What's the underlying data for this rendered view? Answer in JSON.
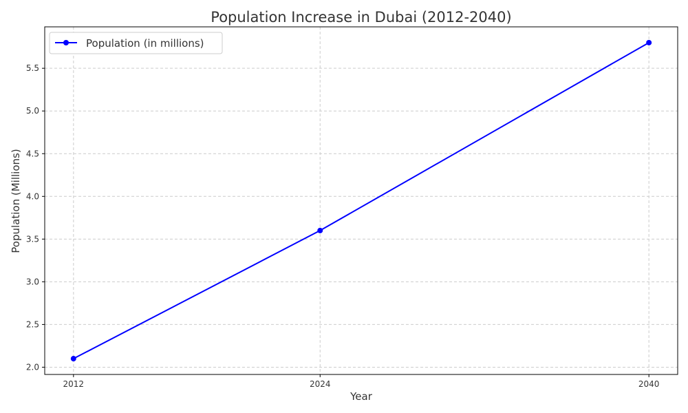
{
  "chart_data": {
    "type": "line",
    "title": "Population Increase in Dubai (2012-2040)",
    "xlabel": "Year",
    "ylabel": "Population (Millions)",
    "x": [
      2012,
      2024,
      2040
    ],
    "x_tick_labels": [
      "2012",
      "2024",
      "2040"
    ],
    "y_ticks": [
      2.0,
      2.5,
      3.0,
      3.5,
      4.0,
      4.5,
      5.0,
      5.5
    ],
    "y_tick_labels": [
      "2.0",
      "2.5",
      "3.0",
      "3.5",
      "4.0",
      "4.5",
      "5.0",
      "5.5"
    ],
    "ylim": [
      1.915,
      5.985
    ],
    "xlim": [
      2010.6,
      2041.4
    ],
    "grid": true,
    "legend_position": "top-left",
    "series": [
      {
        "name": "Population (in millions)",
        "color": "#0000ff",
        "marker": "circle",
        "values": [
          2.1,
          3.6,
          5.8
        ]
      }
    ]
  }
}
